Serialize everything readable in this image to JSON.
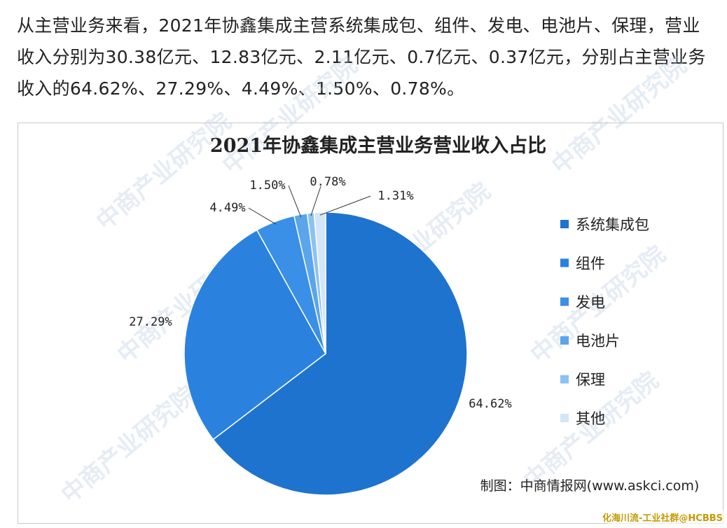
{
  "paragraph": "从主营业务来看，2021年协鑫集成主营系统集成包、组件、发电、电池片、保理，营业收入分别为30.38亿元、12.83亿元、2.11亿元、0.7亿元、0.37亿元，分别占主营业务收入的64.62%、27.29%、4.49%、1.50%、0.78%。",
  "chart_data": {
    "type": "pie",
    "title": "2021年协鑫集成主营业务营业收入占比",
    "categories": [
      "系统集成包",
      "组件",
      "发电",
      "电池片",
      "保理",
      "其他"
    ],
    "values": [
      64.62,
      27.29,
      4.49,
      1.5,
      0.78,
      1.31
    ],
    "value_labels": [
      "64.62%",
      "27.29%",
      "4.49%",
      "1.50%",
      "0.78%",
      "1.31%"
    ],
    "colors": [
      "#1e73cf",
      "#2a82de",
      "#3a8fe6",
      "#5aa5ec",
      "#8cc2f2",
      "#d3e6f8"
    ],
    "legend": "right"
  },
  "source": "制图：中商情报网(www.askci.com)",
  "watermark": "中商产业研究院",
  "overlay": "化海川流-工业社群@HCBBS"
}
